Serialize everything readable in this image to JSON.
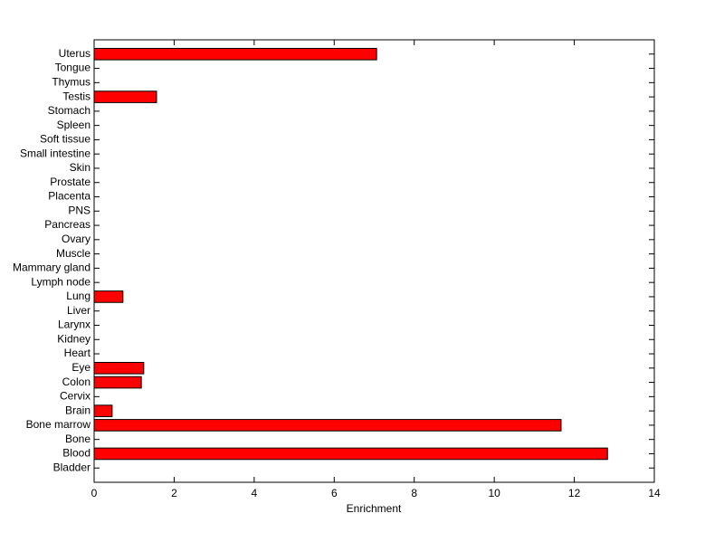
{
  "chart_data": {
    "type": "bar",
    "orientation": "horizontal",
    "x_label": "Enrichment",
    "categories": [
      "Bladder",
      "Blood",
      "Bone",
      "Bone marrow",
      "Brain",
      "Cervix",
      "Colon",
      "Eye",
      "Heart",
      "Kidney",
      "Larynx",
      "Liver",
      "Lung",
      "Lymph node",
      "Mammary gland",
      "Muscle",
      "Ovary",
      "Pancreas",
      "PNS",
      "Placenta",
      "Prostate",
      "Skin",
      "Small intestine",
      "Soft tissue",
      "Spleen",
      "Stomach",
      "Testis",
      "Thymus",
      "Tongue",
      "Uterus"
    ],
    "values": [
      0,
      12.83,
      0,
      11.67,
      0.45,
      0,
      1.18,
      1.24,
      0,
      0,
      0,
      0,
      0.72,
      0,
      0,
      0,
      0,
      0,
      0,
      0,
      0,
      0,
      0,
      0,
      0,
      0,
      1.56,
      0,
      0,
      7.06
    ],
    "color": "#ff0000",
    "xlim": [
      0,
      14
    ],
    "xticks": [
      0,
      2,
      4,
      6,
      8,
      10,
      12,
      14
    ]
  }
}
